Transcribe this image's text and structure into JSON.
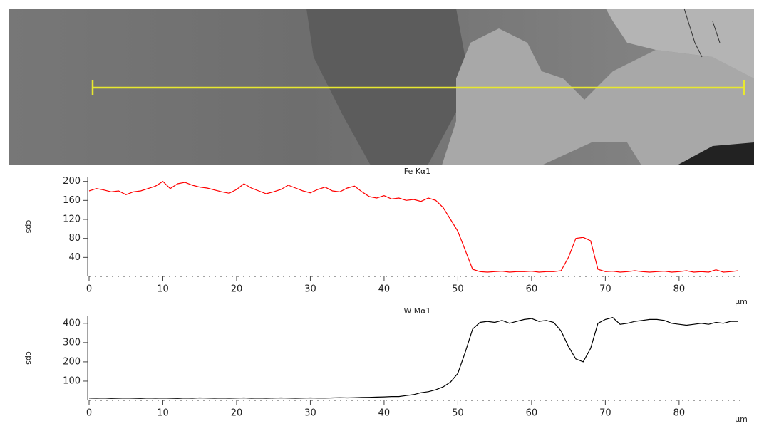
{
  "chart_data": [
    {
      "type": "line",
      "title": "Fe Kα1",
      "xlabel": "µm",
      "ylabel": "cps",
      "x": [
        0,
        1,
        2,
        3,
        4,
        5,
        6,
        7,
        8,
        9,
        10,
        11,
        12,
        13,
        14,
        15,
        16,
        17,
        18,
        19,
        20,
        21,
        22,
        23,
        24,
        25,
        26,
        27,
        28,
        29,
        30,
        31,
        32,
        33,
        34,
        35,
        36,
        37,
        38,
        39,
        40,
        41,
        42,
        43,
        44,
        45,
        46,
        47,
        48,
        49,
        50,
        51,
        52,
        53,
        54,
        55,
        56,
        57,
        58,
        59,
        60,
        61,
        62,
        63,
        64,
        65,
        66,
        67,
        68,
        69,
        70,
        71,
        72,
        73,
        74,
        75,
        76,
        77,
        78,
        79,
        80,
        81,
        82,
        83,
        84,
        85,
        86,
        87,
        88
      ],
      "series": [
        {
          "name": "Fe Kα1",
          "color": "#ff0000",
          "values": [
            180,
            185,
            182,
            178,
            180,
            172,
            178,
            180,
            185,
            190,
            200,
            185,
            195,
            198,
            192,
            188,
            186,
            182,
            178,
            175,
            183,
            195,
            186,
            180,
            174,
            178,
            183,
            192,
            186,
            180,
            176,
            183,
            188,
            180,
            178,
            186,
            190,
            178,
            168,
            165,
            170,
            163,
            165,
            160,
            162,
            158,
            165,
            160,
            145,
            120,
            95,
            55,
            15,
            10,
            9,
            10,
            11,
            9,
            10,
            10,
            11,
            9,
            10,
            10,
            12,
            40,
            80,
            82,
            75,
            15,
            10,
            11,
            9,
            10,
            12,
            10,
            9,
            10,
            11,
            9,
            10,
            12,
            9,
            10,
            9,
            14,
            9,
            10,
            12
          ]
        }
      ],
      "xlim": [
        0,
        89
      ],
      "ylim": [
        0,
        210
      ],
      "xticks": [
        0,
        10,
        20,
        30,
        40,
        50,
        60,
        70,
        80
      ],
      "yticks": [
        40,
        80,
        120,
        160,
        200
      ]
    },
    {
      "type": "line",
      "title": "W Mα1",
      "xlabel": "µm",
      "ylabel": "cps",
      "x": [
        0,
        1,
        2,
        3,
        4,
        5,
        6,
        7,
        8,
        9,
        10,
        11,
        12,
        13,
        14,
        15,
        16,
        17,
        18,
        19,
        20,
        21,
        22,
        23,
        24,
        25,
        26,
        27,
        28,
        29,
        30,
        31,
        32,
        33,
        34,
        35,
        36,
        37,
        38,
        39,
        40,
        41,
        42,
        43,
        44,
        45,
        46,
        47,
        48,
        49,
        50,
        51,
        52,
        53,
        54,
        55,
        56,
        57,
        58,
        59,
        60,
        61,
        62,
        63,
        64,
        65,
        66,
        67,
        68,
        69,
        70,
        71,
        72,
        73,
        74,
        75,
        76,
        77,
        78,
        79,
        80,
        81,
        82,
        83,
        84,
        85,
        86,
        87,
        88
      ],
      "series": [
        {
          "name": "W Mα1",
          "color": "#000000",
          "values": [
            12,
            11,
            12,
            10,
            11,
            12,
            11,
            10,
            12,
            11,
            12,
            11,
            10,
            12,
            11,
            13,
            12,
            11,
            12,
            11,
            12,
            13,
            11,
            12,
            11,
            12,
            13,
            12,
            11,
            12,
            13,
            12,
            12,
            13,
            14,
            13,
            14,
            15,
            16,
            17,
            18,
            20,
            20,
            25,
            30,
            40,
            45,
            55,
            70,
            95,
            140,
            250,
            370,
            405,
            410,
            405,
            415,
            400,
            410,
            420,
            425,
            410,
            415,
            405,
            360,
            280,
            215,
            200,
            270,
            400,
            420,
            430,
            395,
            400,
            410,
            415,
            420,
            420,
            415,
            400,
            395,
            390,
            395,
            400,
            395,
            405,
            400,
            410,
            410
          ]
        }
      ],
      "xlim": [
        0,
        89
      ],
      "ylim": [
        0,
        440
      ],
      "xticks": [
        0,
        10,
        20,
        30,
        40,
        50,
        60,
        70,
        80
      ],
      "yticks": [
        100,
        200,
        300,
        400
      ]
    }
  ]
}
